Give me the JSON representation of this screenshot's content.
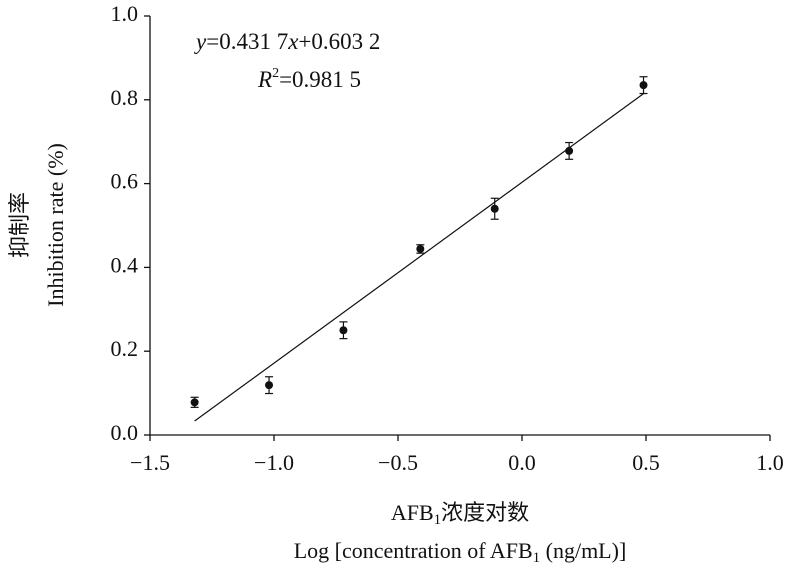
{
  "chart_data": {
    "type": "scatter",
    "x_label": [
      "AFB",
      "1",
      "浓度对数"
    ],
    "x_label_2": [
      "Log [concentration of AFB",
      "1",
      " (ng/mL)]"
    ],
    "y_label": "抑制率",
    "y_label_2": "Inhibition rate (%)",
    "fit": {
      "equation": [
        "y",
        "=0.431 7",
        "x",
        "+0.603 2"
      ],
      "r2": [
        "R",
        "2",
        "=0.981 5"
      ],
      "slope": 0.4317,
      "intercept": 0.6032
    },
    "series": [
      {
        "color": "#111111",
        "x": [
          -1.32,
          -1.02,
          -0.72,
          -0.41,
          -0.11,
          0.19,
          0.49
        ],
        "values": [
          0.078,
          0.119,
          0.25,
          0.444,
          0.54,
          0.678,
          0.835
        ],
        "errors": [
          0.012,
          0.02,
          0.02,
          0.01,
          0.025,
          0.02,
          0.02
        ]
      }
    ],
    "xlim": [
      -1.5,
      1.0
    ],
    "xticks": [
      {
        "value": -1.5,
        "label": "−1.5"
      },
      {
        "value": -1.0,
        "label": "−1.0"
      },
      {
        "value": -0.5,
        "label": "−0.5"
      },
      {
        "value": 0,
        "label": "0.0"
      },
      0.5,
      {
        "value": 1.0,
        "label": "1.0"
      }
    ],
    "ylim": [
      0,
      1.0
    ],
    "yticks": [
      {
        "value": 0,
        "label": "0.0"
      },
      0.2,
      0.4,
      0.6,
      0.8,
      {
        "value": 1.0,
        "label": "1.0"
      }
    ]
  }
}
